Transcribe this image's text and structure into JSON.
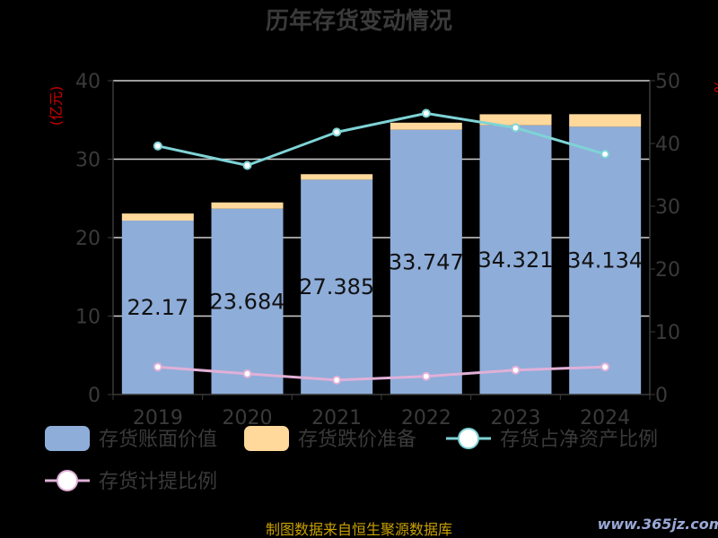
{
  "chart_data": {
    "type": "bar",
    "title": "历年存货变动情况",
    "categories": [
      "2019",
      "2020",
      "2021",
      "2022",
      "2023",
      "2024"
    ],
    "ylabel_left": "(亿元)",
    "ylabel_right": "%",
    "ylim_left": [
      0,
      40
    ],
    "ylim_right": [
      0,
      50
    ],
    "yticks_left": [
      0,
      10,
      20,
      30,
      40
    ],
    "yticks_right": [
      0,
      10,
      20,
      30,
      40,
      50
    ],
    "series": [
      {
        "name": "存货账面价值",
        "type": "bar",
        "stack": "inv",
        "axis": "left",
        "color": "#8eadd9",
        "values": [
          22.17,
          23.684,
          27.385,
          33.747,
          34.321,
          34.134
        ],
        "labels_shown": true
      },
      {
        "name": "存货跌价准备",
        "type": "bar",
        "stack": "inv",
        "axis": "left",
        "color": "#ffd89b",
        "values": [
          0.9,
          0.8,
          0.7,
          0.9,
          1.4,
          1.6
        ]
      },
      {
        "name": "存货占净资产比例",
        "type": "line",
        "axis": "right",
        "color": "#7fd3d6",
        "values": [
          39.6,
          36.5,
          41.8,
          44.8,
          42.5,
          38.3
        ]
      },
      {
        "name": "存货计提比例",
        "type": "line",
        "axis": "right",
        "color": "#e0b0d8",
        "values": [
          4.4,
          3.3,
          2.3,
          2.9,
          3.9,
          4.4
        ]
      }
    ],
    "grid": true,
    "legend_position": "bottom"
  },
  "footer": {
    "source": "制图数据来自恒生聚源数据库",
    "watermark": "www.365jz.com"
  }
}
